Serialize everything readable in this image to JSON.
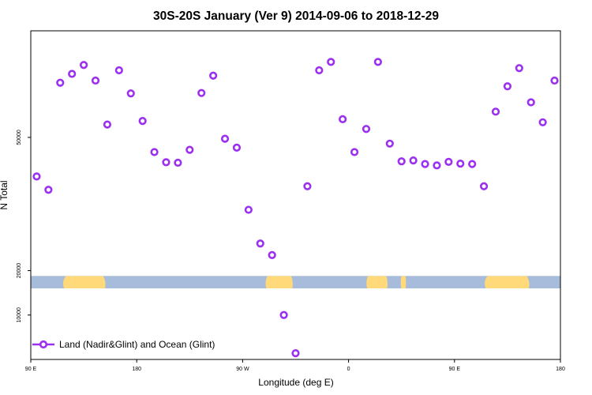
{
  "chart_data": {
    "type": "scatter",
    "title": "30S-20S January (Ver 9)   2014-09-06 to 2018-12-29",
    "xlabel": "Longitude (deg E)",
    "ylabel": "N Total",
    "xlim": [
      90,
      540
    ],
    "ylim": [
      0,
      74000
    ],
    "x_ticks": [
      {
        "value": 90,
        "label": "90 E"
      },
      {
        "value": 180,
        "label": "180"
      },
      {
        "value": 270,
        "label": "90 W"
      },
      {
        "value": 360,
        "label": "0"
      },
      {
        "value": 450,
        "label": "90 E"
      },
      {
        "value": 540,
        "label": "180"
      }
    ],
    "y_ticks": [
      {
        "value": 10000,
        "label": "10000"
      },
      {
        "value": 20000,
        "label": "20000"
      },
      {
        "value": 50000,
        "label": "50000"
      }
    ],
    "series": [
      {
        "name": "Land (Nadir&Glint) and Ocean (Glint)",
        "color": "#9b30f0",
        "marker": "open-circle",
        "x": [
          95,
          105,
          115,
          125,
          135,
          145,
          155,
          165,
          175,
          185,
          195,
          205,
          215,
          225,
          235,
          245,
          255,
          265,
          275,
          285,
          295,
          305,
          315,
          325,
          335,
          345,
          355,
          365,
          375,
          385,
          395,
          405,
          415,
          425,
          435,
          445,
          455,
          465,
          475,
          485,
          495,
          505,
          515,
          525,
          535
        ],
        "y": [
          41200,
          38200,
          62300,
          64300,
          66300,
          62800,
          52900,
          65100,
          59900,
          53700,
          46700,
          44400,
          44300,
          47200,
          60000,
          63900,
          49700,
          47700,
          33700,
          26100,
          23500,
          10000,
          1400,
          39000,
          65100,
          67000,
          54100,
          46700,
          51900,
          67000,
          48600,
          44600,
          44800,
          44000,
          43700,
          44500,
          44100,
          44000,
          39000,
          55800,
          61500,
          65600,
          57900,
          53400,
          62800
        ]
      }
    ],
    "background": {
      "band_y_range": [
        16000,
        18800
      ],
      "ocean_color": "#a7bcdb",
      "land_color": "#ffd97a"
    },
    "legend_position": "bottom-left",
    "grid": false
  }
}
